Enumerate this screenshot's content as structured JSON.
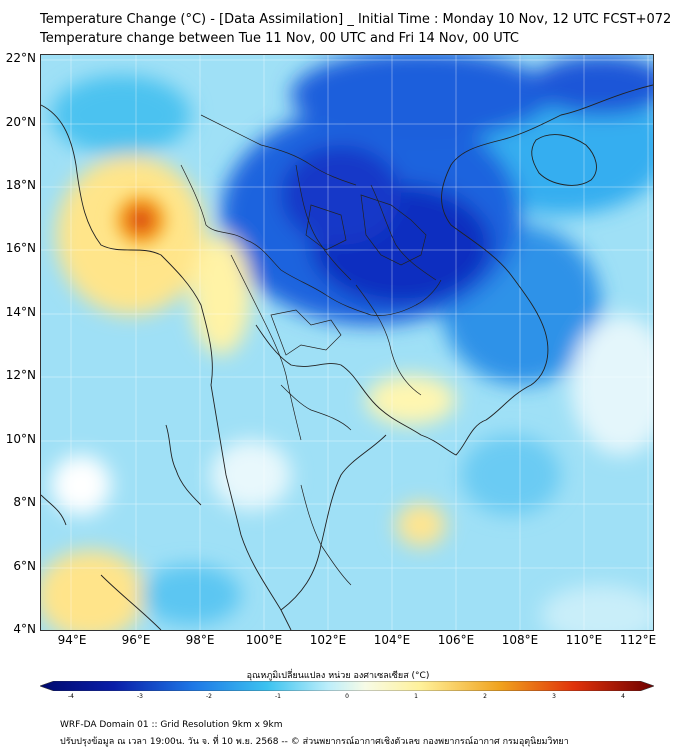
{
  "title_line1": "Temperature Change (°C) - [Data Assimilation] _ Initial Time : Monday 10 Nov, 12 UTC FCST+072",
  "title_line2": "Temperature change between Tue 11 Nov, 00 UTC and Fri 14 Nov, 00 UTC",
  "lat_labels": [
    "22°N",
    "20°N",
    "18°N",
    "16°N",
    "14°N",
    "12°N",
    "10°N",
    "8°N",
    "6°N",
    "4°N"
  ],
  "lon_labels": [
    "94°E",
    "96°E",
    "98°E",
    "100°E",
    "102°E",
    "104°E",
    "106°E",
    "108°E",
    "110°E",
    "112°E"
  ],
  "colorbar": {
    "title": "อุณหภูมิเปลี่ยนแปลง หน่วย องศาเซลเซียส (°C)",
    "ticks": [
      "-4",
      "-3",
      "-2",
      "-1",
      "0",
      "1",
      "2",
      "3",
      "4"
    ],
    "colors": {
      "strong_cool": "#0a1ea8",
      "cool": "#1e78e6",
      "light_cool": "#8fd8f5",
      "neutral": "#e6f6fb",
      "warm": "#fff19a",
      "hot": "#f08a1e",
      "strong_hot": "#c8280a"
    }
  },
  "footer_line1": "WRF-DA Domain 01 :: Grid Resolution 9km x 9km",
  "footer_line2": "ปรับปรุงข้อมูล ณ เวลา 19:00น. วัน จ. ที่ 10 พ.ย. 2568 -- © ส่วนพยากรณ์อากาศเชิงตัวเลข กองพยากรณ์อากาศ กรมอุตุนิยมวิทยา"
}
